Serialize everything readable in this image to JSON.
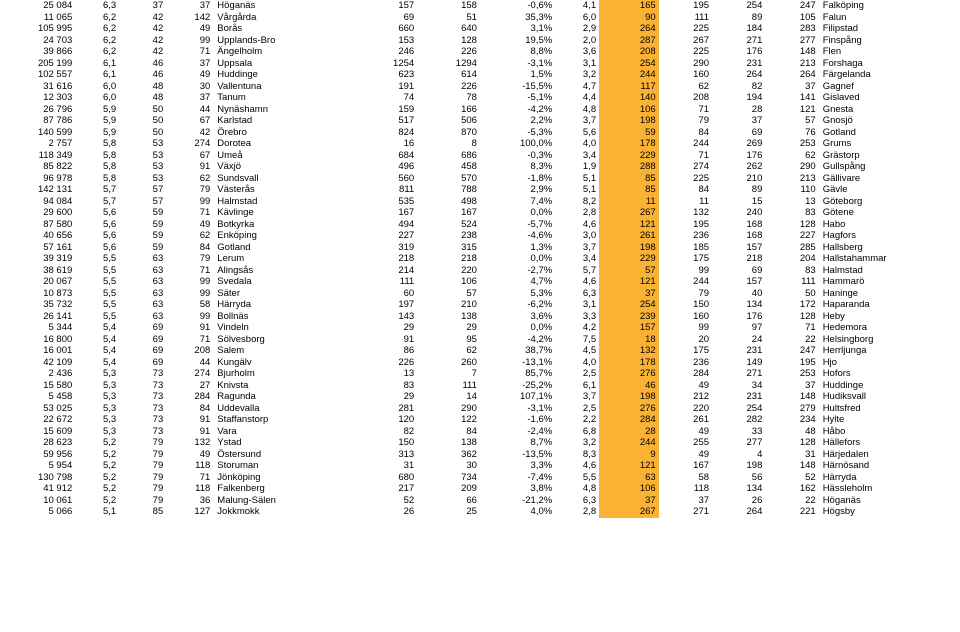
{
  "highlight_color": "#f9b233",
  "background_color": "#ffffff",
  "font_family": "Arial",
  "font_size_pt": 7,
  "num_columns": 14,
  "highlight_column_index": 9,
  "alignment": [
    "right",
    "right",
    "right",
    "right",
    "left",
    "right",
    "right",
    "right",
    "right",
    "right",
    "right",
    "right",
    "right",
    "left"
  ],
  "rows": [
    [
      "25 084",
      "6,3",
      "37",
      "37",
      "Höganäs",
      "157",
      "158",
      "-0,6%",
      "4,1",
      "165",
      "195",
      "254",
      "247",
      "Falköping"
    ],
    [
      "11 065",
      "6,2",
      "42",
      "142",
      "Vårgårda",
      "69",
      "51",
      "35,3%",
      "6,0",
      "90",
      "111",
      "89",
      "105",
      "Falun"
    ],
    [
      "105 995",
      "6,2",
      "42",
      "49",
      "Borås",
      "660",
      "640",
      "3,1%",
      "2,9",
      "264",
      "225",
      "184",
      "283",
      "Filipstad"
    ],
    [
      "24 703",
      "6,2",
      "42",
      "99",
      "Upplands-Bro",
      "153",
      "128",
      "19,5%",
      "2,0",
      "287",
      "267",
      "271",
      "277",
      "Finspång"
    ],
    [
      "39 866",
      "6,2",
      "42",
      "71",
      "Ängelholm",
      "246",
      "226",
      "8,8%",
      "3,6",
      "208",
      "225",
      "176",
      "148",
      "Flen"
    ],
    [
      "205 199",
      "6,1",
      "46",
      "37",
      "Uppsala",
      "1254",
      "1294",
      "-3,1%",
      "3,1",
      "254",
      "290",
      "231",
      "213",
      "Forshaga"
    ],
    [
      "102 557",
      "6,1",
      "46",
      "49",
      "Huddinge",
      "623",
      "614",
      "1,5%",
      "3,2",
      "244",
      "160",
      "264",
      "264",
      "Färgelanda"
    ],
    [
      "31 616",
      "6,0",
      "48",
      "30",
      "Vallentuna",
      "191",
      "226",
      "-15,5%",
      "4,7",
      "117",
      "62",
      "82",
      "37",
      "Gagnef"
    ],
    [
      "12 303",
      "6,0",
      "48",
      "37",
      "Tanum",
      "74",
      "78",
      "-5,1%",
      "4,4",
      "140",
      "208",
      "194",
      "141",
      "Gislaved"
    ],
    [
      "26 796",
      "5,9",
      "50",
      "44",
      "Nynäshamn",
      "159",
      "166",
      "-4,2%",
      "4,8",
      "106",
      "71",
      "28",
      "121",
      "Gnesta"
    ],
    [
      "87 786",
      "5,9",
      "50",
      "67",
      "Karlstad",
      "517",
      "506",
      "2,2%",
      "3,7",
      "198",
      "79",
      "37",
      "57",
      "Gnosjö"
    ],
    [
      "140 599",
      "5,9",
      "50",
      "42",
      "Örebro",
      "824",
      "870",
      "-5,3%",
      "5,6",
      "59",
      "84",
      "69",
      "76",
      "Gotland"
    ],
    [
      "2 757",
      "5,8",
      "53",
      "274",
      "Dorotea",
      "16",
      "8",
      "100,0%",
      "4,0",
      "178",
      "244",
      "269",
      "253",
      "Grums"
    ],
    [
      "118 349",
      "5,8",
      "53",
      "67",
      "Umeå",
      "684",
      "686",
      "-0,3%",
      "3,4",
      "229",
      "71",
      "176",
      "62",
      "Grästorp"
    ],
    [
      "85 822",
      "5,8",
      "53",
      "91",
      "Växjö",
      "496",
      "458",
      "8,3%",
      "1,9",
      "288",
      "274",
      "262",
      "290",
      "Gullspång"
    ],
    [
      "96 978",
      "5,8",
      "53",
      "62",
      "Sundsvall",
      "560",
      "570",
      "-1,8%",
      "5,1",
      "85",
      "225",
      "210",
      "213",
      "Gällivare"
    ],
    [
      "142 131",
      "5,7",
      "57",
      "79",
      "Västerås",
      "811",
      "788",
      "2,9%",
      "5,1",
      "85",
      "84",
      "89",
      "110",
      "Gävle"
    ],
    [
      "94 084",
      "5,7",
      "57",
      "99",
      "Halmstad",
      "535",
      "498",
      "7,4%",
      "8,2",
      "11",
      "11",
      "15",
      "13",
      "Göteborg"
    ],
    [
      "29 600",
      "5,6",
      "59",
      "71",
      "Kävlinge",
      "167",
      "167",
      "0,0%",
      "2,8",
      "267",
      "132",
      "240",
      "83",
      "Götene"
    ],
    [
      "87 580",
      "5,6",
      "59",
      "49",
      "Botkyrka",
      "494",
      "524",
      "-5,7%",
      "4,6",
      "121",
      "195",
      "168",
      "128",
      "Habo"
    ],
    [
      "40 656",
      "5,6",
      "59",
      "62",
      "Enköping",
      "227",
      "238",
      "-4,6%",
      "3,0",
      "261",
      "236",
      "168",
      "227",
      "Hagfors"
    ],
    [
      "57 161",
      "5,6",
      "59",
      "84",
      "Gotland",
      "319",
      "315",
      "1,3%",
      "3,7",
      "198",
      "185",
      "157",
      "285",
      "Hallsberg"
    ],
    [
      "39 319",
      "5,5",
      "63",
      "79",
      "Lerum",
      "218",
      "218",
      "0,0%",
      "3,4",
      "229",
      "175",
      "218",
      "204",
      "Hallstahammar"
    ],
    [
      "38 619",
      "5,5",
      "63",
      "71",
      "Alingsås",
      "214",
      "220",
      "-2,7%",
      "5,7",
      "57",
      "99",
      "69",
      "83",
      "Halmstad"
    ],
    [
      "20 067",
      "5,5",
      "63",
      "99",
      "Svedala",
      "111",
      "106",
      "4,7%",
      "4,6",
      "121",
      "244",
      "157",
      "111",
      "Hammarö"
    ],
    [
      "10 873",
      "5,5",
      "63",
      "99",
      "Säter",
      "60",
      "57",
      "5,3%",
      "6,3",
      "37",
      "79",
      "40",
      "50",
      "Haninge"
    ],
    [
      "35 732",
      "5,5",
      "63",
      "58",
      "Härryda",
      "197",
      "210",
      "-6,2%",
      "3,1",
      "254",
      "150",
      "134",
      "172",
      "Haparanda"
    ],
    [
      "26 141",
      "5,5",
      "63",
      "99",
      "Bollnäs",
      "143",
      "138",
      "3,6%",
      "3,3",
      "239",
      "160",
      "176",
      "128",
      "Heby"
    ],
    [
      "5 344",
      "5,4",
      "69",
      "91",
      "Vindeln",
      "29",
      "29",
      "0,0%",
      "4,2",
      "157",
      "99",
      "97",
      "71",
      "Hedemora"
    ],
    [
      "16 800",
      "5,4",
      "69",
      "71",
      "Sölvesborg",
      "91",
      "95",
      "-4,2%",
      "7,5",
      "18",
      "20",
      "24",
      "22",
      "Helsingborg"
    ],
    [
      "16 001",
      "5,4",
      "69",
      "208",
      "Salem",
      "86",
      "62",
      "38,7%",
      "4,5",
      "132",
      "175",
      "231",
      "247",
      "Herrljunga"
    ],
    [
      "42 109",
      "5,4",
      "69",
      "44",
      "Kungälv",
      "226",
      "260",
      "-13,1%",
      "4,0",
      "178",
      "236",
      "149",
      "195",
      "Hjo"
    ],
    [
      "2 436",
      "5,3",
      "73",
      "274",
      "Bjurholm",
      "13",
      "7",
      "85,7%",
      "2,5",
      "276",
      "284",
      "271",
      "253",
      "Hofors"
    ],
    [
      "15 580",
      "5,3",
      "73",
      "27",
      "Knivsta",
      "83",
      "111",
      "-25,2%",
      "6,1",
      "46",
      "49",
      "34",
      "37",
      "Huddinge"
    ],
    [
      "5 458",
      "5,3",
      "73",
      "284",
      "Ragunda",
      "29",
      "14",
      "107,1%",
      "3,7",
      "198",
      "212",
      "231",
      "148",
      "Hudiksvall"
    ],
    [
      "53 025",
      "5,3",
      "73",
      "84",
      "Uddevalla",
      "281",
      "290",
      "-3,1%",
      "2,5",
      "276",
      "220",
      "254",
      "279",
      "Hultsfred"
    ],
    [
      "22 672",
      "5,3",
      "73",
      "91",
      "Staffanstorp",
      "120",
      "122",
      "-1,6%",
      "2,2",
      "284",
      "261",
      "282",
      "234",
      "Hylte"
    ],
    [
      "15 609",
      "5,3",
      "73",
      "91",
      "Vara",
      "82",
      "84",
      "-2,4%",
      "6,8",
      "28",
      "49",
      "33",
      "48",
      "Håbo"
    ],
    [
      "28 623",
      "5,2",
      "79",
      "132",
      "Ystad",
      "150",
      "138",
      "8,7%",
      "3,2",
      "244",
      "255",
      "277",
      "128",
      "Hällefors"
    ],
    [
      "59 956",
      "5,2",
      "79",
      "49",
      "Östersund",
      "313",
      "362",
      "-13,5%",
      "8,3",
      "9",
      "49",
      "4",
      "31",
      "Härjedalen"
    ],
    [
      "5 954",
      "5,2",
      "79",
      "118",
      "Storuman",
      "31",
      "30",
      "3,3%",
      "4,6",
      "121",
      "167",
      "198",
      "148",
      "Härnösand"
    ],
    [
      "130 798",
      "5,2",
      "79",
      "71",
      "Jönköping",
      "680",
      "734",
      "-7,4%",
      "5,5",
      "63",
      "58",
      "56",
      "52",
      "Härryda"
    ],
    [
      "41 912",
      "5,2",
      "79",
      "118",
      "Falkenberg",
      "217",
      "209",
      "3,8%",
      "4,8",
      "106",
      "118",
      "134",
      "162",
      "Hässleholm"
    ],
    [
      "10 061",
      "5,2",
      "79",
      "36",
      "Malung-Sälen",
      "52",
      "66",
      "-21,2%",
      "6,3",
      "37",
      "37",
      "26",
      "22",
      "Höganäs"
    ],
    [
      "5 066",
      "5,1",
      "85",
      "127",
      "Jokkmokk",
      "26",
      "25",
      "4,0%",
      "2,8",
      "267",
      "271",
      "264",
      "221",
      "Högsby"
    ]
  ]
}
